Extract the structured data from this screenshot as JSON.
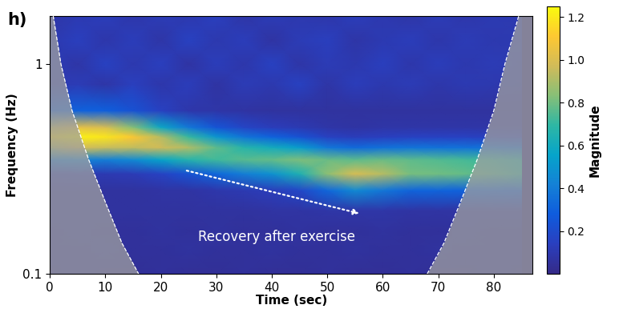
{
  "chart_data": {
    "type": "heatmap",
    "panel_label": "h)",
    "xlabel": "Time (sec)",
    "ylabel": "Frequency (Hz)",
    "log": "y",
    "xlim": [
      0,
      87
    ],
    "xticks": [
      0,
      10,
      20,
      30,
      40,
      50,
      60,
      70,
      80
    ],
    "ylim": [
      0.1,
      1.7
    ],
    "yticks": [
      0.1,
      1
    ],
    "x": [
      0,
      5,
      10,
      15,
      20,
      25,
      30,
      35,
      40,
      45,
      50,
      55,
      60,
      65,
      70,
      75,
      80,
      85
    ],
    "y": [
      0.1,
      0.13,
      0.16,
      0.2,
      0.25,
      0.3,
      0.35,
      0.4,
      0.45,
      0.5,
      0.6,
      0.8,
      1.0,
      1.3,
      1.7
    ],
    "cells": [
      [
        0.04,
        0.05,
        0.04,
        0.04,
        0.05,
        0.04,
        0.04,
        0.05,
        0.04,
        0.04,
        0.05,
        0.04,
        0.04,
        0.05,
        0.04,
        0.04,
        0.05,
        0.04
      ],
      [
        0.05,
        0.05,
        0.06,
        0.05,
        0.05,
        0.06,
        0.05,
        0.05,
        0.06,
        0.05,
        0.05,
        0.06,
        0.05,
        0.05,
        0.06,
        0.05,
        0.05,
        0.05
      ],
      [
        0.05,
        0.06,
        0.05,
        0.05,
        0.06,
        0.05,
        0.06,
        0.05,
        0.05,
        0.06,
        0.05,
        0.05,
        0.06,
        0.05,
        0.05,
        0.06,
        0.05,
        0.05
      ],
      [
        0.06,
        0.06,
        0.06,
        0.06,
        0.06,
        0.06,
        0.06,
        0.06,
        0.07,
        0.07,
        0.08,
        0.08,
        0.08,
        0.07,
        0.07,
        0.07,
        0.07,
        0.07
      ],
      [
        0.06,
        0.06,
        0.06,
        0.06,
        0.07,
        0.07,
        0.09,
        0.11,
        0.13,
        0.18,
        0.32,
        0.45,
        0.38,
        0.31,
        0.31,
        0.3,
        0.29,
        0.28
      ],
      [
        0.1,
        0.11,
        0.11,
        0.12,
        0.16,
        0.23,
        0.32,
        0.41,
        0.48,
        0.64,
        0.84,
        0.99,
        0.92,
        0.81,
        0.8,
        0.78,
        0.75,
        0.7
      ],
      [
        0.39,
        0.42,
        0.41,
        0.45,
        0.56,
        0.66,
        0.72,
        0.76,
        0.78,
        0.82,
        0.79,
        0.77,
        0.79,
        0.77,
        0.75,
        0.73,
        0.71,
        0.66
      ],
      [
        0.91,
        0.98,
        0.95,
        0.94,
        0.97,
        0.91,
        0.77,
        0.67,
        0.61,
        0.53,
        0.38,
        0.33,
        0.36,
        0.37,
        0.36,
        0.36,
        0.35,
        0.33
      ],
      [
        1.16,
        1.22,
        1.19,
        1.1,
        0.92,
        0.71,
        0.5,
        0.37,
        0.3,
        0.23,
        0.15,
        0.13,
        0.14,
        0.15,
        0.15,
        0.15,
        0.14,
        0.14
      ],
      [
        0.95,
        1.03,
        0.99,
        0.83,
        0.58,
        0.38,
        0.24,
        0.17,
        0.13,
        0.11,
        0.08,
        0.07,
        0.08,
        0.08,
        0.08,
        0.08,
        0.08,
        0.08
      ],
      [
        0.28,
        0.3,
        0.29,
        0.23,
        0.15,
        0.09,
        0.08,
        0.07,
        0.06,
        0.06,
        0.06,
        0.06,
        0.06,
        0.06,
        0.06,
        0.06,
        0.06,
        0.06
      ],
      [
        0.1,
        0.12,
        0.08,
        0.14,
        0.09,
        0.13,
        0.07,
        0.12,
        0.1,
        0.15,
        0.08,
        0.13,
        0.1,
        0.12,
        0.09,
        0.11,
        0.1,
        0.09
      ],
      [
        0.12,
        0.08,
        0.15,
        0.1,
        0.14,
        0.07,
        0.13,
        0.09,
        0.15,
        0.08,
        0.12,
        0.1,
        0.14,
        0.09,
        0.13,
        0.1,
        0.12,
        0.1
      ],
      [
        0.1,
        0.14,
        0.09,
        0.13,
        0.08,
        0.15,
        0.1,
        0.13,
        0.07,
        0.12,
        0.14,
        0.08,
        0.11,
        0.13,
        0.09,
        0.12,
        0.1,
        0.11
      ],
      [
        0.08,
        0.11,
        0.13,
        0.09,
        0.12,
        0.1,
        0.14,
        0.08,
        0.12,
        0.1,
        0.09,
        0.13,
        0.1,
        0.08,
        0.12,
        0.09,
        0.11,
        0.1
      ]
    ],
    "colorbar": {
      "label": "Magnitude",
      "range": [
        0,
        1.25
      ],
      "ticks": [
        0.2,
        0.4,
        0.6,
        0.8,
        1.0,
        1.2
      ]
    },
    "cone_of_influence": {
      "left": {
        "x": [
          0.6,
          2,
          4,
          7,
          10,
          13,
          16
        ],
        "frequency": [
          1.7,
          1.0,
          0.6,
          0.35,
          0.22,
          0.14,
          0.1
        ]
      },
      "right": {
        "x": [
          68,
          71,
          74,
          77,
          80,
          82,
          84.5
        ],
        "frequency": [
          0.1,
          0.14,
          0.22,
          0.35,
          0.6,
          1.0,
          1.7
        ]
      }
    },
    "annotations": [
      {
        "text": "Recovery after exercise"
      }
    ]
  }
}
